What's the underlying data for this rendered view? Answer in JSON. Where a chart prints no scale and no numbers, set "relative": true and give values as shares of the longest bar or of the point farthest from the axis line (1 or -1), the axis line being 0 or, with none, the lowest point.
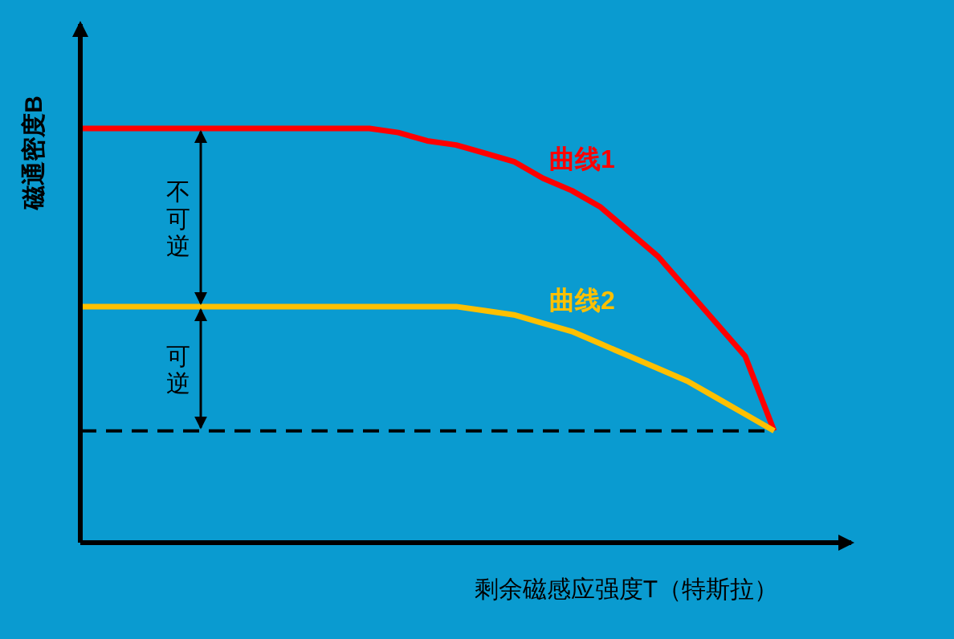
{
  "chart_data": {
    "type": "line",
    "relative": true,
    "xlabel": "剩余磁感应强度T（特斯拉）",
    "ylabel": "磁通密度B",
    "legend": false,
    "marker": "none",
    "line_style": "solid",
    "categories": [
      null,
      null,
      null,
      null,
      null,
      null,
      null,
      null,
      null,
      null,
      null,
      null,
      null,
      null,
      null,
      null,
      null,
      null,
      null,
      null,
      null,
      null,
      null,
      null,
      null
    ],
    "series": [
      {
        "name": "曲线1",
        "color": "#ff0000",
        "values": [
          1,
          1,
          1,
          1,
          1,
          1,
          1,
          1,
          1,
          1,
          1,
          0.99,
          0.97,
          0.96,
          0.94,
          0.92,
          0.88,
          0.85,
          0.81,
          0.75,
          0.69,
          0.61,
          0.53,
          0.45,
          0.27
        ]
      },
      {
        "name": "曲线2",
        "color": "#ffc000",
        "values": [
          0.57,
          0.57,
          0.57,
          0.57,
          0.57,
          0.57,
          0.57,
          0.57,
          0.57,
          0.57,
          0.57,
          0.57,
          0.57,
          0.57,
          0.56,
          0.55,
          0.53,
          0.51,
          0.48,
          0.45,
          0.42,
          0.39,
          0.35,
          0.31,
          0.27
        ]
      }
    ],
    "ref_lines": [
      {
        "axis": "y",
        "value": 0.27,
        "color": "#000000",
        "line_style": "dashed"
      }
    ],
    "annotations": [
      "不可逆",
      "可逆"
    ]
  }
}
